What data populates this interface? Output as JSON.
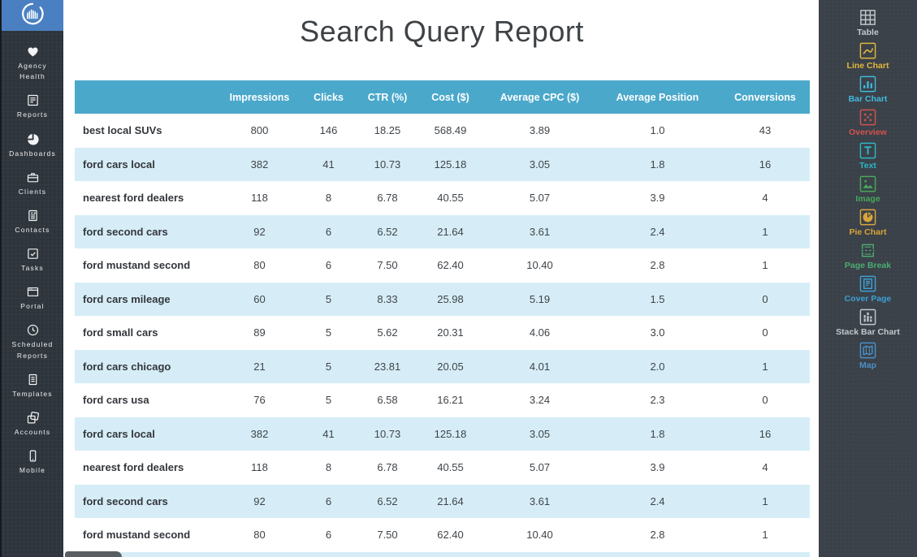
{
  "colors": {
    "table_header_bg": "#4aa8cb",
    "row_alt_bg": "#d6edf7",
    "left_sidebar_bg": "#2f353c",
    "right_sidebar_bg": "#3a4148",
    "logo_bg": "#4a80c2",
    "widget_colors": {
      "table": "#c3c8cd",
      "line_chart": "#e0b73e",
      "bar_chart": "#41b9de",
      "overview": "#d4524e",
      "text": "#2fb5c6",
      "image": "#49a75c",
      "pie_chart": "#d9a43b",
      "page_break": "#4cad74",
      "cover_page": "#3e9fd4",
      "stack_bar_chart": "#c3c8cd",
      "map": "#4a90c9"
    }
  },
  "left_sidebar": {
    "items": [
      {
        "label": "Agency Health",
        "icon": "heart-icon"
      },
      {
        "label": "Reports",
        "icon": "reports-icon"
      },
      {
        "label": "Dashboards",
        "icon": "pie-icon"
      },
      {
        "label": "Clients",
        "icon": "briefcase-icon"
      },
      {
        "label": "Contacts",
        "icon": "contact-card-icon"
      },
      {
        "label": "Tasks",
        "icon": "checkbox-icon"
      },
      {
        "label": "Portal",
        "icon": "browser-window-icon"
      },
      {
        "label": "Scheduled Reports",
        "icon": "clock-icon"
      },
      {
        "label": "Templates",
        "icon": "document-icon"
      },
      {
        "label": "Accounts",
        "icon": "stacked-cards-icon"
      },
      {
        "label": "Mobile",
        "icon": "phone-icon"
      }
    ]
  },
  "report": {
    "title": "Search Query Report"
  },
  "table": {
    "columns": [
      "",
      "Impressions",
      "Clicks",
      "CTR (%)",
      "Cost ($)",
      "Average CPC ($)",
      "Average Position",
      "Conversions"
    ],
    "rows": [
      [
        "best local SUVs",
        "800",
        "146",
        "18.25",
        "568.49",
        "3.89",
        "1.0",
        "43"
      ],
      [
        "ford cars local",
        "382",
        "41",
        "10.73",
        "125.18",
        "3.05",
        "1.8",
        "16"
      ],
      [
        "nearest ford dealers",
        "118",
        "8",
        "6.78",
        "40.55",
        "5.07",
        "3.9",
        "4"
      ],
      [
        "ford second cars",
        "92",
        "6",
        "6.52",
        "21.64",
        "3.61",
        "2.4",
        "1"
      ],
      [
        "ford mustand second",
        "80",
        "6",
        "7.50",
        "62.40",
        "10.40",
        "2.8",
        "1"
      ],
      [
        "ford cars mileage",
        "60",
        "5",
        "8.33",
        "25.98",
        "5.19",
        "1.5",
        "0"
      ],
      [
        "ford small cars",
        "89",
        "5",
        "5.62",
        "20.31",
        "4.06",
        "3.0",
        "0"
      ],
      [
        "ford cars chicago",
        "21",
        "5",
        "23.81",
        "20.05",
        "4.01",
        "2.0",
        "1"
      ],
      [
        "ford cars usa",
        "76",
        "5",
        "6.58",
        "16.21",
        "3.24",
        "2.3",
        "0"
      ],
      [
        "ford cars local",
        "382",
        "41",
        "10.73",
        "125.18",
        "3.05",
        "1.8",
        "16"
      ],
      [
        "nearest ford dealers",
        "118",
        "8",
        "6.78",
        "40.55",
        "5.07",
        "3.9",
        "4"
      ],
      [
        "ford second cars",
        "92",
        "6",
        "6.52",
        "21.64",
        "3.61",
        "2.4",
        "1"
      ],
      [
        "ford mustand second",
        "80",
        "6",
        "7.50",
        "62.40",
        "10.40",
        "2.8",
        "1"
      ]
    ]
  },
  "right_sidebar": {
    "widgets": [
      {
        "label": "Table",
        "icon": "table-widget-icon"
      },
      {
        "label": "Line Chart",
        "icon": "line-chart-icon"
      },
      {
        "label": "Bar Chart",
        "icon": "bar-chart-icon"
      },
      {
        "label": "Overview",
        "icon": "overview-dots-icon"
      },
      {
        "label": "Text",
        "icon": "text-icon"
      },
      {
        "label": "Image",
        "icon": "image-icon"
      },
      {
        "label": "Pie Chart",
        "icon": "pie-chart-icon"
      },
      {
        "label": "Page Break",
        "icon": "page-break-icon"
      },
      {
        "label": "Cover Page",
        "icon": "cover-page-icon"
      },
      {
        "label": "Stack Bar Chart",
        "icon": "stack-bar-chart-icon"
      },
      {
        "label": "Map",
        "icon": "map-icon"
      }
    ]
  }
}
